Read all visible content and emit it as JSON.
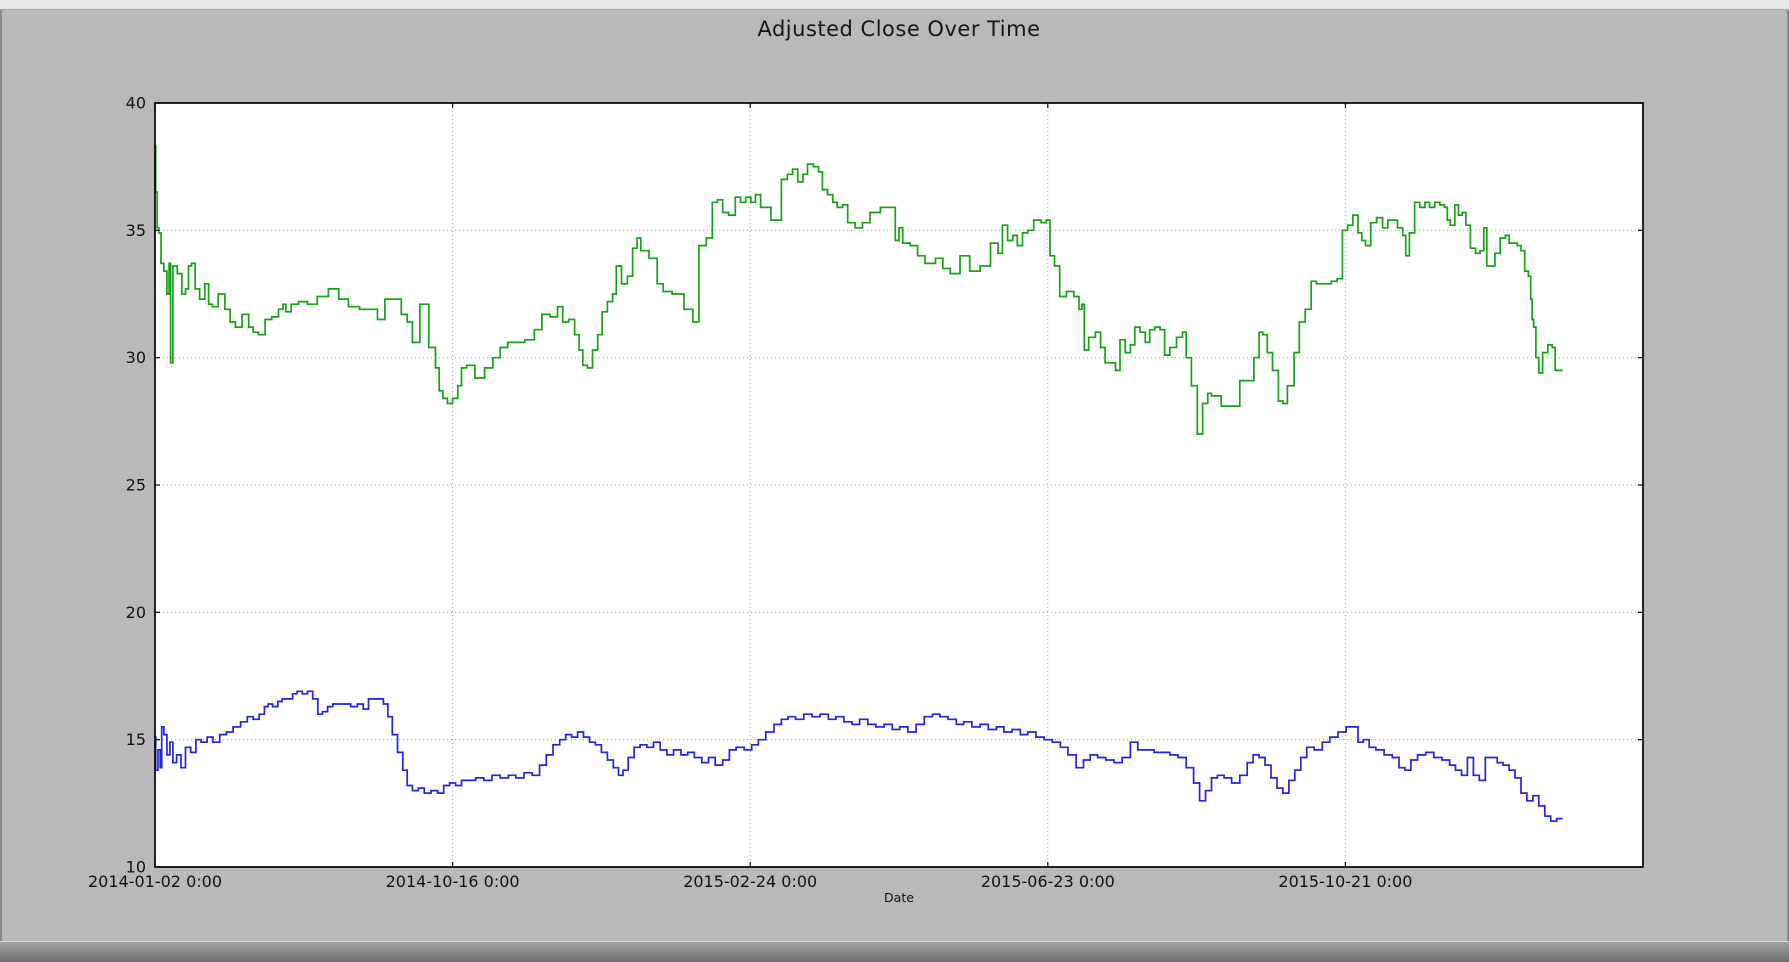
{
  "window": {
    "background": "#b9b9b9",
    "top_strip_color": "#e9e9e9",
    "bottom_strip_color": "#8c8c8c",
    "border_color": "#8a8a8a"
  },
  "chart_data": {
    "type": "line",
    "title": "Adjusted Close Over Time",
    "xlabel": "Date",
    "ylabel": "",
    "ylim": [
      10,
      40
    ],
    "yticks": [
      10,
      15,
      20,
      25,
      30,
      35,
      40
    ],
    "xlim": [
      0,
      1000
    ],
    "xticks": [
      {
        "pos": 0,
        "label": "2014-01-02 0:00"
      },
      {
        "pos": 200,
        "label": "2014-10-16 0:00"
      },
      {
        "pos": 400,
        "label": "2015-02-24 0:00"
      },
      {
        "pos": 600,
        "label": "2015-06-23 0:00"
      },
      {
        "pos": 800,
        "label": "2015-10-21 0:00"
      }
    ],
    "grid": true,
    "legend": null,
    "plot_bg": "#ffffff",
    "grid_color": "#a6a6a6",
    "axis_color": "#000000",
    "tick_label_color": "#111111",
    "series": [
      {
        "name": "green",
        "color": "#18a018",
        "x": [
          0,
          1,
          2,
          3,
          5,
          7,
          9,
          10,
          11,
          13,
          17,
          19,
          22,
          23,
          26,
          28,
          32,
          35,
          37,
          40,
          45,
          49,
          52,
          56,
          61,
          65,
          67,
          72,
          76,
          81,
          85,
          87,
          89,
          94,
          99,
          106,
          112,
          121,
          126,
          134,
          141,
          148,
          151,
          158,
          163,
          168,
          171,
          175,
          181,
          187,
          190,
          192,
          195,
          198,
          202,
          205,
          207,
          212,
          218,
          225,
          229,
          235,
          239,
          245,
          252,
          258,
          262,
          269,
          272,
          276,
          280,
          284,
          286,
          289,
          292,
          296,
          299,
          302,
          306,
          309,
          311,
          316,
          319,
          323,
          325,
          328,
          336,
          339,
          344,
          351,
          360,
          363,
          368,
          373,
          376,
          380,
          383,
          388,
          392,
          395,
          399,
          402,
          405,
          409,
          419,
          423,
          427,
          430,
          434,
          437,
          440,
          445,
          447,
          450,
          454,
          457,
          460,
          464,
          467,
          474,
          477,
          484,
          491,
          496,
          499,
          501,
          504,
          511,
          514,
          521,
          528,
          531,
          538,
          544,
          551,
          558,
          565,
          568,
          571,
          575,
          578,
          581,
          585,
          588,
          593,
          598,
          600,
          603,
          606,
          610,
          615,
          620,
          622,
          624,
          625,
          630,
          634,
          637,
          640,
          644,
          647,
          650,
          654,
          657,
          660,
          664,
          667,
          670,
          674,
          677,
          680,
          684,
          689,
          692,
          694,
          699,
          702,
          706,
          709,
          711,
          722,
          736,
          741,
          743,
          746,
          749,
          753,
          757,
          759,
          763,
          768,
          770,
          776,
          778,
          783,
          788,
          793,
          796,
          800,
          803,
          807,
          810,
          812,
          815,
          819,
          823,
          827,
          830,
          833,
          837,
          840,
          841,
          845,
          848,
          852,
          855,
          858,
          862,
          865,
          868,
          869,
          872,
          875,
          877,
          880,
          882,
          886,
          889,
          892,
          894,
          896,
          899,
          902,
          906,
          909,
          911,
          914,
          917,
          919,
          922,
          924,
          925,
          926,
          927,
          929,
          931,
          934,
          938,
          940,
          942,
          946
        ],
        "y": [
          38.3,
          36.5,
          35.1,
          34.9,
          33.7,
          33.4,
          32.5,
          33.7,
          29.8,
          33.6,
          33.3,
          32.5,
          32.7,
          33.6,
          33.7,
          32.7,
          32.3,
          32.9,
          32.1,
          32.0,
          32.5,
          31.9,
          31.4,
          31.2,
          31.7,
          31.2,
          31.0,
          30.9,
          31.5,
          31.6,
          31.9,
          32.1,
          31.8,
          32.1,
          32.2,
          32.1,
          32.4,
          32.7,
          32.3,
          32.0,
          31.9,
          31.9,
          31.5,
          32.3,
          32.3,
          31.7,
          31.4,
          30.6,
          32.1,
          30.4,
          29.6,
          28.7,
          28.4,
          28.2,
          28.4,
          28.9,
          29.6,
          29.7,
          29.2,
          29.6,
          30.0,
          30.4,
          30.6,
          30.6,
          30.7,
          31.1,
          31.7,
          31.6,
          32.0,
          31.4,
          31.5,
          30.9,
          30.3,
          29.7,
          29.6,
          30.3,
          30.9,
          31.8,
          32.2,
          32.5,
          33.6,
          32.9,
          33.2,
          34.3,
          34.7,
          34.2,
          33.9,
          32.9,
          32.6,
          32.5,
          31.9,
          31.4,
          34.4,
          34.7,
          36.1,
          36.2,
          35.7,
          35.6,
          36.3,
          36.1,
          36.3,
          36.1,
          36.4,
          35.9,
          35.4,
          37.0,
          37.2,
          37.4,
          36.9,
          37.2,
          37.6,
          37.5,
          37.3,
          36.6,
          36.4,
          36.1,
          35.9,
          36.0,
          35.3,
          35.1,
          35.3,
          35.7,
          35.9,
          35.9,
          34.6,
          35.1,
          34.5,
          34.4,
          34.0,
          33.7,
          33.9,
          33.5,
          33.3,
          34.0,
          33.4,
          33.6,
          34.5,
          34.1,
          35.2,
          34.6,
          34.8,
          34.4,
          34.9,
          35.0,
          35.4,
          35.3,
          35.4,
          34.0,
          33.6,
          32.4,
          32.6,
          32.4,
          31.9,
          32.1,
          30.3,
          30.8,
          31.0,
          30.4,
          29.8,
          29.8,
          29.5,
          30.7,
          30.2,
          30.5,
          31.2,
          31.0,
          30.6,
          31.1,
          31.2,
          31.1,
          30.1,
          30.4,
          30.8,
          31.0,
          30.0,
          28.9,
          27.0,
          28.2,
          28.6,
          28.5,
          28.1,
          29.1,
          30.0,
          31.0,
          30.9,
          30.2,
          29.5,
          28.3,
          28.2,
          28.9,
          30.2,
          31.4,
          31.9,
          33.0,
          32.9,
          32.9,
          33.0,
          33.1,
          35.0,
          35.2,
          35.6,
          34.9,
          34.6,
          34.4,
          35.3,
          35.5,
          35.1,
          35.4,
          35.4,
          35.1,
          34.8,
          34.0,
          34.9,
          36.1,
          35.9,
          36.1,
          35.9,
          36.1,
          36.0,
          35.9,
          35.4,
          35.2,
          36.0,
          35.6,
          35.7,
          35.2,
          34.3,
          34.1,
          34.2,
          35.1,
          33.6,
          33.6,
          34.1,
          34.7,
          34.8,
          34.5,
          34.5,
          34.4,
          34.2,
          33.4,
          33.2,
          32.3,
          31.5,
          31.2,
          30.0,
          29.4,
          30.2,
          30.5,
          30.4,
          29.5,
          29.5
        ]
      },
      {
        "name": "blue",
        "color": "#2424dd",
        "x": [
          0,
          1,
          3,
          4,
          5,
          7,
          9,
          11,
          13,
          16,
          19,
          22,
          26,
          29,
          33,
          37,
          41,
          46,
          50,
          55,
          60,
          64,
          68,
          72,
          75,
          77,
          81,
          84,
          87,
          91,
          94,
          97,
          101,
          104,
          108,
          111,
          114,
          118,
          121,
          124,
          129,
          134,
          138,
          142,
          145,
          149,
          152,
          155,
          158,
          161,
          165,
          168,
          171,
          175,
          179,
          183,
          188,
          192,
          196,
          200,
          204,
          208,
          213,
          218,
          224,
          229,
          235,
          240,
          245,
          251,
          256,
          261,
          265,
          270,
          274,
          278,
          282,
          286,
          290,
          294,
          298,
          302,
          306,
          310,
          313,
          316,
          320,
          324,
          328,
          333,
          337,
          342,
          346,
          351,
          356,
          360,
          365,
          370,
          374,
          379,
          384,
          388,
          393,
          399,
          403,
          408,
          413,
          419,
          423,
          428,
          433,
          439,
          444,
          450,
          455,
          460,
          466,
          471,
          476,
          482,
          487,
          493,
          498,
          503,
          509,
          514,
          520,
          525,
          530,
          536,
          541,
          546,
          552,
          557,
          563,
          568,
          573,
          579,
          584,
          589,
          595,
          600,
          606,
          611,
          616,
          622,
          626,
          631,
          636,
          642,
          647,
          653,
          658,
          663,
          669,
          674,
          679,
          685,
          690,
          696,
          700,
          704,
          708,
          712,
          716,
          721,
          726,
          732,
          736,
          740,
          744,
          748,
          752,
          756,
          760,
          764,
          768,
          772,
          776,
          782,
          787,
          792,
          798,
          803,
          807,
          810,
          814,
          818,
          823,
          829,
          834,
          838,
          842,
          846,
          851,
          857,
          862,
          868,
          872,
          876,
          880,
          884,
          888,
          892,
          896,
          900,
          904,
          908,
          912,
          916,
          920,
          924,
          928,
          932,
          936,
          940,
          944,
          946
        ],
        "y": [
          15.1,
          13.8,
          14.6,
          13.9,
          15.5,
          15.2,
          14.4,
          14.9,
          14.1,
          14.4,
          13.9,
          14.7,
          14.5,
          15.0,
          14.9,
          15.1,
          14.9,
          15.2,
          15.3,
          15.5,
          15.7,
          15.9,
          15.8,
          16.0,
          16.3,
          16.4,
          16.3,
          16.5,
          16.6,
          16.6,
          16.8,
          16.9,
          16.8,
          16.9,
          16.6,
          16.0,
          16.1,
          16.3,
          16.4,
          16.4,
          16.4,
          16.3,
          16.4,
          16.2,
          16.6,
          16.6,
          16.6,
          16.4,
          15.9,
          15.2,
          14.5,
          13.8,
          13.2,
          13.0,
          13.1,
          12.9,
          13.0,
          12.9,
          13.2,
          13.3,
          13.2,
          13.4,
          13.4,
          13.5,
          13.4,
          13.6,
          13.5,
          13.6,
          13.5,
          13.7,
          13.6,
          14.0,
          14.4,
          14.8,
          15.0,
          15.2,
          15.1,
          15.3,
          15.1,
          14.9,
          14.8,
          14.5,
          14.2,
          13.9,
          13.6,
          13.8,
          14.3,
          14.7,
          14.8,
          14.7,
          14.9,
          14.6,
          14.4,
          14.6,
          14.4,
          14.5,
          14.3,
          14.1,
          14.3,
          14.0,
          14.2,
          14.6,
          14.7,
          14.6,
          14.8,
          15.0,
          15.3,
          15.6,
          15.8,
          15.9,
          15.8,
          16.0,
          15.9,
          16.0,
          15.8,
          15.9,
          15.7,
          15.6,
          15.8,
          15.6,
          15.5,
          15.6,
          15.4,
          15.5,
          15.3,
          15.6,
          15.9,
          16.0,
          15.9,
          15.8,
          15.6,
          15.7,
          15.5,
          15.6,
          15.4,
          15.5,
          15.3,
          15.4,
          15.2,
          15.3,
          15.1,
          15.0,
          14.9,
          14.7,
          14.4,
          13.9,
          14.2,
          14.4,
          14.3,
          14.2,
          14.1,
          14.3,
          14.9,
          14.6,
          14.6,
          14.5,
          14.5,
          14.4,
          14.3,
          13.9,
          13.3,
          12.6,
          13.0,
          13.5,
          13.6,
          13.5,
          13.3,
          13.6,
          14.1,
          14.4,
          14.3,
          14.0,
          13.5,
          13.1,
          12.9,
          13.4,
          13.8,
          14.3,
          14.7,
          14.6,
          14.9,
          15.1,
          15.3,
          15.5,
          15.5,
          14.9,
          15.0,
          14.7,
          14.6,
          14.4,
          14.3,
          13.9,
          13.8,
          14.2,
          14.4,
          14.5,
          14.3,
          14.2,
          14.0,
          13.8,
          13.6,
          14.3,
          13.6,
          13.4,
          14.3,
          14.3,
          14.1,
          14.0,
          13.8,
          13.5,
          12.9,
          12.6,
          12.8,
          12.4,
          12.0,
          11.8,
          11.9,
          11.9
        ]
      }
    ]
  }
}
